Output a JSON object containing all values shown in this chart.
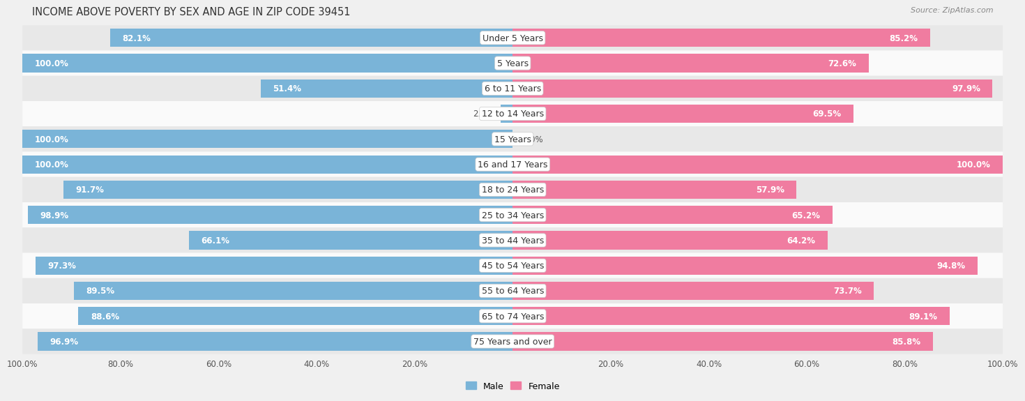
{
  "title": "INCOME ABOVE POVERTY BY SEX AND AGE IN ZIP CODE 39451",
  "source": "Source: ZipAtlas.com",
  "categories": [
    "Under 5 Years",
    "5 Years",
    "6 to 11 Years",
    "12 to 14 Years",
    "15 Years",
    "16 and 17 Years",
    "18 to 24 Years",
    "25 to 34 Years",
    "35 to 44 Years",
    "45 to 54 Years",
    "55 to 64 Years",
    "65 to 74 Years",
    "75 Years and over"
  ],
  "male_values": [
    82.1,
    100.0,
    51.4,
    2.4,
    100.0,
    100.0,
    91.7,
    98.9,
    66.1,
    97.3,
    89.5,
    88.6,
    96.9
  ],
  "female_values": [
    85.2,
    72.6,
    97.9,
    69.5,
    0.0,
    100.0,
    57.9,
    65.2,
    64.2,
    94.8,
    73.7,
    89.1,
    85.8
  ],
  "male_color": "#7ab4d8",
  "female_color": "#f07ca0",
  "male_label": "Male",
  "female_label": "Female",
  "background_color": "#f0f0f0",
  "row_bg_light": "#fafafa",
  "row_bg_dark": "#e8e8e8",
  "title_fontsize": 10.5,
  "label_fontsize": 8.5,
  "tick_fontsize": 8.5,
  "source_fontsize": 8,
  "bottom_tick_labels": [
    "100.0%",
    "80.0%",
    "60.0%",
    "40.0%",
    "20.0%",
    "20.0%",
    "40.0%",
    "60.0%",
    "80.0%",
    "100.0%"
  ],
  "bottom_tick_positions": [
    -100,
    -80,
    -60,
    -40,
    -20,
    20,
    40,
    60,
    80,
    100
  ]
}
